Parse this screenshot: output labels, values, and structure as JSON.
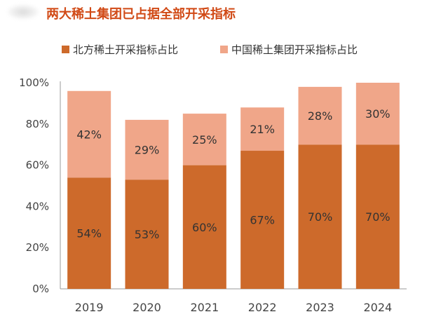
{
  "colors": {
    "title": "#d14a16",
    "series_1": "#cd6a2b",
    "series_2": "#f0a689",
    "axis_text": "#444444",
    "label_text": "#333333"
  },
  "header": {
    "title": "两大稀土集团已占据全部开采指标"
  },
  "legend": {
    "items": [
      {
        "label": "北方稀土开采指标占比",
        "color": "#cd6a2b"
      },
      {
        "label": "中国稀土集团开采指标占比",
        "color": "#f0a689"
      }
    ]
  },
  "chart_data": {
    "type": "bar",
    "stacked": true,
    "title": "两大稀土集团已占据全部开采指标",
    "xlabel": "",
    "ylabel": "",
    "categories": [
      "2019",
      "2020",
      "2021",
      "2022",
      "2023",
      "2024"
    ],
    "series": [
      {
        "name": "北方稀土开采指标占比",
        "values": [
          54,
          53,
          60,
          67,
          70,
          70
        ],
        "labels": [
          "54%",
          "53%",
          "60%",
          "67%",
          "70%",
          "70%"
        ]
      },
      {
        "name": "中国稀土集团开采指标占比",
        "values": [
          42,
          29,
          25,
          21,
          28,
          30
        ],
        "labels": [
          "42%",
          "29%",
          "25%",
          "21%",
          "28%",
          "30%"
        ]
      }
    ],
    "y_ticks": [
      0,
      20,
      40,
      60,
      80,
      100
    ],
    "y_tick_labels": [
      "0%",
      "20%",
      "40%",
      "60%",
      "80%",
      "100%"
    ],
    "ylim": [
      0,
      100
    ],
    "grid": false,
    "legend_position": "top"
  }
}
